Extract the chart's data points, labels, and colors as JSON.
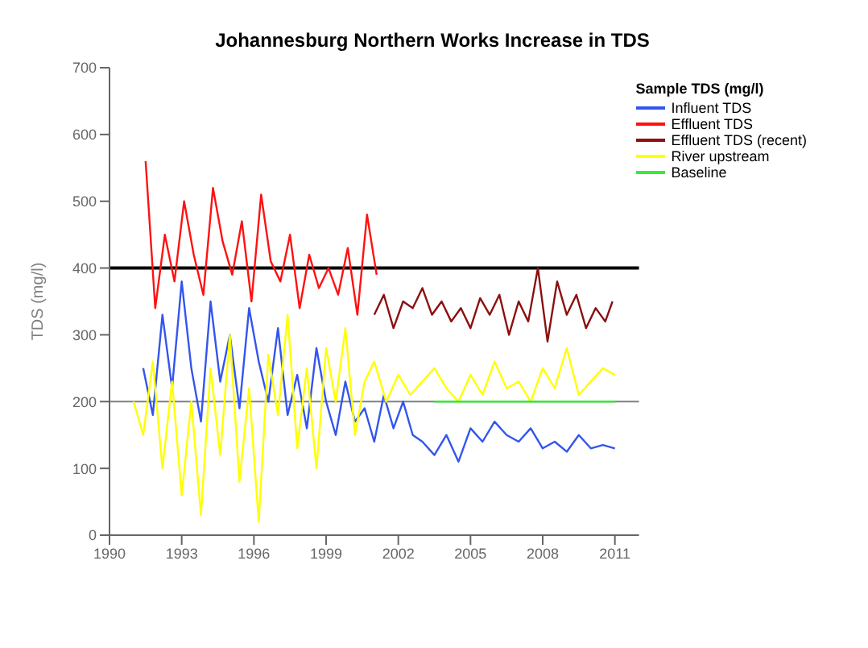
{
  "chart_data": {
    "type": "line",
    "title": "Johannesburg Northern Works Increase in TDS",
    "ylabel": "TDS (mg/l)",
    "legend_title": "Sample TDS (mg/l)",
    "xlim": [
      1990,
      2012
    ],
    "xticks": [
      1990,
      1993,
      1996,
      1999,
      2002,
      2005,
      2008,
      2011
    ],
    "ylim": [
      0,
      700
    ],
    "yticks": [
      0,
      100,
      200,
      300,
      400,
      500,
      600,
      700
    ],
    "grid": false,
    "legend": "top right",
    "marker": "none",
    "line_style": "solid",
    "ref_lines": [
      {
        "axis": "y",
        "value": 400,
        "color": "#000000"
      },
      {
        "axis": "y",
        "value": 200,
        "color": "#808080"
      }
    ],
    "series": [
      {
        "name": "Influent TDS",
        "color": "#3355ee",
        "x": [
          1991.4,
          1991.8,
          1992.2,
          1992.6,
          1993,
          1993.4,
          1993.8,
          1994.2,
          1994.6,
          1995,
          1995.4,
          1995.8,
          1996.2,
          1996.6,
          1997,
          1997.4,
          1997.8,
          1998.2,
          1998.6,
          1999,
          1999.4,
          1999.8,
          2000.2,
          2000.6,
          2001,
          2001.4,
          2001.8,
          2002.2,
          2002.6,
          2003,
          2003.5,
          2004,
          2004.5,
          2005,
          2005.5,
          2006,
          2006.5,
          2007,
          2007.5,
          2008,
          2008.5,
          2009,
          2009.5,
          2010,
          2010.5,
          2011
        ],
        "values": [
          250,
          180,
          330,
          220,
          380,
          250,
          170,
          350,
          230,
          300,
          190,
          340,
          260,
          200,
          310,
          180,
          240,
          160,
          280,
          200,
          150,
          230,
          170,
          190,
          140,
          210,
          160,
          200,
          150,
          140,
          120,
          150,
          110,
          160,
          140,
          170,
          150,
          140,
          160,
          130,
          140,
          125,
          150,
          130,
          135,
          130
        ]
      },
      {
        "name": "Effluent TDS",
        "color": "#ff1111",
        "x": [
          1991.5,
          1991.9,
          1992.3,
          1992.7,
          1993.1,
          1993.5,
          1993.9,
          1994.3,
          1994.7,
          1995.1,
          1995.5,
          1995.9,
          1996.3,
          1996.7,
          1997.1,
          1997.5,
          1997.9,
          1998.3,
          1998.7,
          1999.1,
          1999.5,
          1999.9,
          2000.3,
          2000.7,
          2001.1
        ],
        "values": [
          560,
          340,
          450,
          380,
          500,
          420,
          360,
          520,
          440,
          390,
          470,
          350,
          510,
          410,
          380,
          450,
          340,
          420,
          370,
          400,
          360,
          430,
          330,
          480,
          390
        ]
      },
      {
        "name": "Effluent TDS (recent)",
        "color": "#8b1010",
        "x": [
          2001,
          2001.4,
          2001.8,
          2002.2,
          2002.6,
          2003,
          2003.4,
          2003.8,
          2004.2,
          2004.6,
          2005,
          2005.4,
          2005.8,
          2006.2,
          2006.6,
          2007,
          2007.4,
          2007.8,
          2008.2,
          2008.6,
          2009,
          2009.4,
          2009.8,
          2010.2,
          2010.6,
          2010.9
        ],
        "values": [
          330,
          360,
          310,
          350,
          340,
          370,
          330,
          350,
          320,
          340,
          310,
          355,
          330,
          360,
          300,
          350,
          320,
          400,
          290,
          380,
          330,
          360,
          310,
          340,
          320,
          350
        ]
      },
      {
        "name": "River upstream",
        "color": "#ffff00",
        "x": [
          1991,
          1991.4,
          1991.8,
          1992.2,
          1992.6,
          1993,
          1993.4,
          1993.8,
          1994.2,
          1994.6,
          1995,
          1995.4,
          1995.8,
          1996.2,
          1996.6,
          1997,
          1997.4,
          1997.8,
          1998.2,
          1998.6,
          1999,
          1999.4,
          1999.8,
          2000.2,
          2000.6,
          2001,
          2001.5,
          2002,
          2002.5,
          2003,
          2003.5,
          2004,
          2004.5,
          2005,
          2005.5,
          2006,
          2006.5,
          2007,
          2007.5,
          2008,
          2008.5,
          2009,
          2009.5,
          2010,
          2010.5,
          2011
        ],
        "values": [
          200,
          150,
          260,
          100,
          230,
          60,
          200,
          30,
          250,
          120,
          300,
          80,
          220,
          20,
          270,
          180,
          330,
          130,
          250,
          100,
          280,
          200,
          310,
          150,
          230,
          260,
          200,
          240,
          210,
          230,
          250,
          220,
          200,
          240,
          210,
          260,
          220,
          230,
          200,
          250,
          220,
          280,
          210,
          230,
          250,
          240
        ]
      },
      {
        "name": "Baseline",
        "color": "#33ee33",
        "x": [
          2003.5,
          2011
        ],
        "values": [
          200,
          200
        ]
      }
    ]
  }
}
